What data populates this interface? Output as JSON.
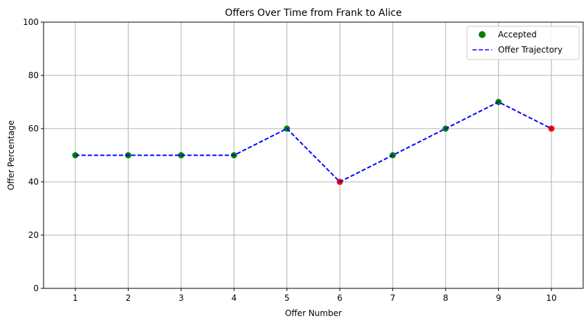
{
  "chart_data": {
    "type": "scatter",
    "title": "Offers Over Time from Frank to Alice",
    "xlabel": "Offer Number",
    "ylabel": "Offer Percentage",
    "x": [
      1,
      2,
      3,
      4,
      5,
      6,
      7,
      8,
      9,
      10
    ],
    "xlim": [
      0.4,
      10.6
    ],
    "ylim": [
      0,
      100
    ],
    "xticks": [
      "1",
      "2",
      "3",
      "4",
      "5",
      "6",
      "7",
      "8",
      "9",
      "10"
    ],
    "yticks": [
      "0",
      "20",
      "40",
      "60",
      "80",
      "100"
    ],
    "grid": true,
    "legend_position": "top-right",
    "series": [
      {
        "name": "Accepted",
        "kind": "scatter",
        "color": "#008000",
        "x": [
          1,
          2,
          3,
          4,
          5,
          7,
          8,
          9
        ],
        "values": [
          50,
          50,
          50,
          50,
          60,
          50,
          60,
          70
        ]
      },
      {
        "kind": "scatter",
        "color": "#ff0000",
        "x": [
          6,
          10
        ],
        "values": [
          40,
          60
        ]
      },
      {
        "name": "Offer Trajectory",
        "kind": "line",
        "style": "dashed",
        "color": "#0000ff",
        "x": [
          1,
          2,
          3,
          4,
          5,
          6,
          7,
          8,
          9,
          10
        ],
        "values": [
          50,
          50,
          50,
          50,
          60,
          40,
          50,
          60,
          70,
          60
        ]
      }
    ]
  }
}
